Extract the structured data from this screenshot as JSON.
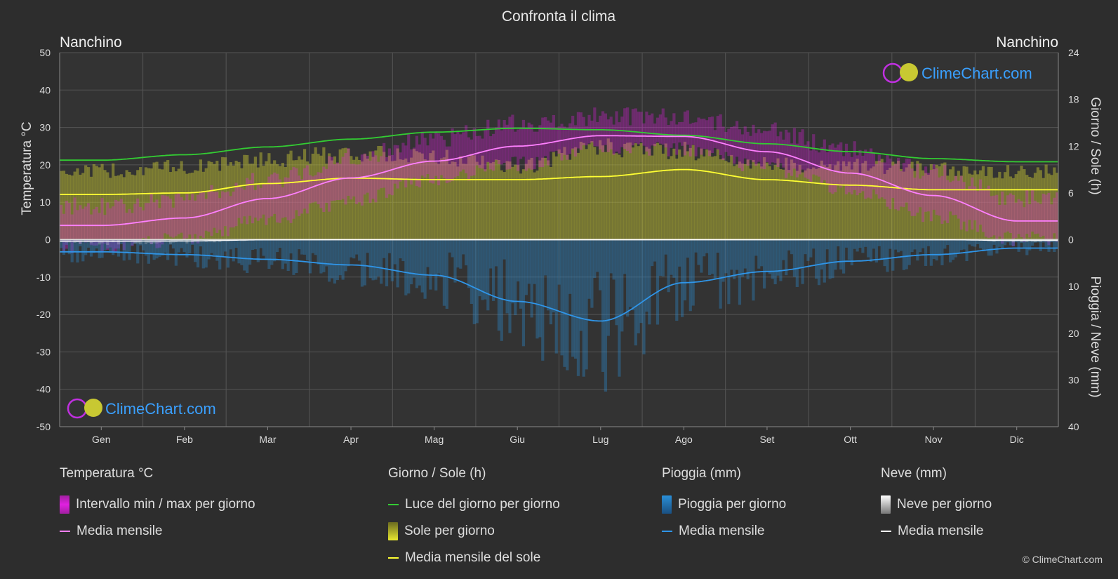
{
  "title": "Confronta il clima",
  "location_left": "Nanchino",
  "location_right": "Nanchino",
  "axis": {
    "left_label": "Temperatura °C",
    "right_top_label": "Giorno / Sole (h)",
    "right_bottom_label": "Pioggia / Neve (mm)"
  },
  "watermark": "ClimeChart.com",
  "copyright": "© ClimeChart.com",
  "legend": {
    "temperature": {
      "title": "Temperatura °C",
      "range_label": "Intervallo min / max per giorno",
      "mean_label": "Media mensile"
    },
    "sun": {
      "title": "Giorno / Sole (h)",
      "daylight_label": "Luce del giorno per giorno",
      "sun_label": "Sole per giorno",
      "sun_mean_label": "Media mensile del sole"
    },
    "rain": {
      "title": "Pioggia (mm)",
      "rain_label": "Pioggia per giorno",
      "mean_label": "Media mensile"
    },
    "snow": {
      "title": "Neve (mm)",
      "snow_label": "Neve per giorno",
      "mean_label": "Media mensile"
    }
  },
  "colors": {
    "background": "#2d2d2d",
    "temp_range": "#e020e0",
    "temp_mean": "#ff80ff",
    "daylight": "#33cc33",
    "sunshine": "#c8c832",
    "sun_mean": "#ffff33",
    "rain": "#2a8fd8",
    "rain_mean": "#2f95e8",
    "snow": "#dddddd",
    "snow_mean": "#ffffff",
    "watermark": "#3aa0ff"
  },
  "chart_data": {
    "type": "area",
    "categories": [
      "Gen",
      "Feb",
      "Mar",
      "Apr",
      "Mag",
      "Giu",
      "Lug",
      "Ago",
      "Set",
      "Ott",
      "Nov",
      "Dic"
    ],
    "temp_axis": {
      "ylim": [
        -50,
        50
      ],
      "ticks": [
        50,
        40,
        30,
        20,
        10,
        0,
        -10,
        -20,
        -30,
        -40,
        -50
      ]
    },
    "sun_axis": {
      "ylim": [
        0,
        24
      ],
      "ticks": [
        24,
        18,
        12,
        6,
        0
      ]
    },
    "precip_axis": {
      "ylim": [
        0,
        40
      ],
      "ticks": [
        0,
        10,
        20,
        30,
        40
      ]
    },
    "series": [
      {
        "name": "Media mensile",
        "kind": "temp_mean",
        "values": [
          3.8,
          5.8,
          11.0,
          16.5,
          21.0,
          25.0,
          27.8,
          27.6,
          23.5,
          17.8,
          11.8,
          5.0
        ]
      },
      {
        "name": "Intervallo min / max per giorno",
        "kind": "temp_max",
        "values": [
          8,
          10,
          15,
          21,
          26,
          30,
          32,
          32,
          28,
          23,
          17,
          10
        ]
      },
      {
        "name": "Intervallo min / max per giorno",
        "kind": "temp_min",
        "values": [
          -1,
          1,
          6,
          11,
          17,
          21,
          25,
          25,
          20,
          14,
          7,
          1
        ]
      },
      {
        "name": "Luce del giorno per giorno",
        "kind": "daylight",
        "values": [
          10.2,
          10.9,
          11.9,
          12.9,
          13.8,
          14.3,
          14.1,
          13.4,
          12.3,
          11.3,
          10.4,
          10.0
        ]
      },
      {
        "name": "Sole per giorno",
        "kind": "sunshine",
        "values": [
          9.3,
          9.8,
          10.8,
          11.6,
          11.2,
          9.8,
          12.5,
          12.0,
          10.2,
          10.0,
          9.6,
          9.2
        ]
      },
      {
        "name": "Media mensile del sole",
        "kind": "sun_mean",
        "values": [
          5.8,
          6.0,
          7.2,
          7.9,
          7.7,
          7.7,
          8.1,
          9.0,
          7.7,
          7.0,
          6.4,
          6.4
        ]
      },
      {
        "name": "Pioggia per giorno",
        "kind": "rain",
        "values": [
          2.6,
          3.2,
          4.2,
          5.4,
          7.6,
          13.2,
          17.4,
          9.2,
          6.8,
          4.6,
          3.2,
          1.8
        ]
      },
      {
        "name": "Media mensile",
        "kind": "rain_mean",
        "values": [
          2.6,
          3.2,
          4.2,
          5.4,
          7.6,
          13.2,
          17.4,
          9.2,
          6.8,
          4.6,
          3.2,
          1.8
        ]
      },
      {
        "name": "Neve per giorno",
        "kind": "snow",
        "values": [
          0.4,
          0.3,
          0.05,
          0,
          0,
          0,
          0,
          0,
          0,
          0,
          0,
          0.2
        ]
      },
      {
        "name": "Media mensile",
        "kind": "snow_mean",
        "values": [
          0.4,
          0.3,
          0.05,
          0,
          0,
          0,
          0,
          0,
          0,
          0,
          0,
          0.2
        ]
      }
    ],
    "grid": true
  }
}
